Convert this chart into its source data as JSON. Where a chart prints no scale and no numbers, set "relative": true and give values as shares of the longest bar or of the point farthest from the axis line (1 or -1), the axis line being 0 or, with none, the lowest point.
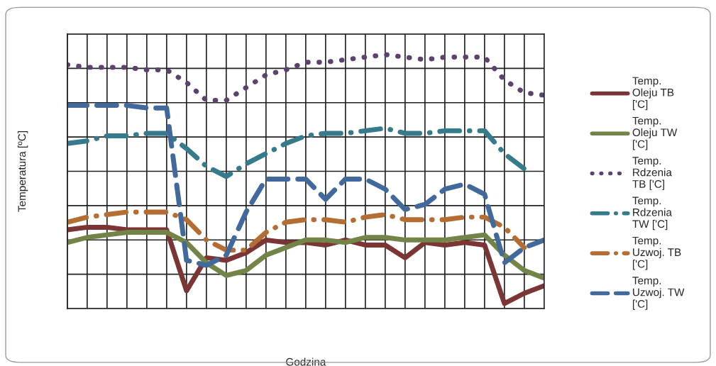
{
  "chart_data": {
    "type": "line",
    "relative": true,
    "xlabel": "Godzina",
    "ylabel": "Temperatura [ºC]",
    "categories": [
      null,
      null,
      null,
      null,
      null,
      null,
      null,
      null,
      null,
      null,
      null,
      null,
      null,
      null,
      null,
      null,
      null,
      null,
      null,
      null,
      null,
      null,
      null,
      null,
      null
    ],
    "series": [
      {
        "name": "Temp.\nOleju TB\n['C]",
        "color": "#7b3535",
        "line_style": "solid",
        "values": [
          0.31,
          0.32,
          0.32,
          0.31,
          0.31,
          0.31,
          0.07,
          0.2,
          0.19,
          0.22,
          0.27,
          0.26,
          0.26,
          0.25,
          0.27,
          0.25,
          0.25,
          0.2,
          0.26,
          0.25,
          0.26,
          0.25,
          0.02,
          0.06,
          0.09
        ]
      },
      {
        "name": "Temp.\nOleju TW\n['C]",
        "color": "#738448",
        "line_style": "solid",
        "values": [
          0.26,
          0.28,
          0.29,
          0.3,
          0.3,
          0.3,
          0.26,
          0.18,
          0.13,
          0.15,
          0.21,
          0.24,
          0.27,
          0.27,
          0.26,
          0.28,
          0.28,
          0.27,
          0.27,
          0.27,
          0.28,
          0.29,
          0.21,
          0.15,
          0.12
        ]
      },
      {
        "name": "Temp.\nRdzenia\nTB ['C]",
        "color": "#5b436e",
        "line_style": "dotted",
        "values": [
          0.96,
          0.95,
          0.95,
          0.95,
          0.94,
          0.94,
          0.89,
          0.82,
          0.82,
          0.87,
          0.92,
          0.94,
          0.97,
          0.97,
          0.98,
          0.99,
          1.0,
          0.99,
          0.98,
          0.99,
          0.99,
          0.99,
          0.9,
          0.85,
          0.84
        ]
      },
      {
        "name": "Temp.\nRdzenia\nTW ['C]",
        "color": "#367b8c",
        "line_style": "dashdot",
        "values": [
          0.65,
          0.66,
          0.68,
          0.68,
          0.69,
          0.69,
          0.63,
          0.56,
          0.52,
          0.57,
          0.61,
          0.65,
          0.68,
          0.69,
          0.69,
          0.7,
          0.71,
          0.69,
          0.69,
          0.7,
          0.7,
          0.7,
          0.61,
          0.55,
          null
        ]
      },
      {
        "name": "Temp.\nUzwoj. TB\n['C]",
        "color": "#b46e34",
        "line_style": "dashdot",
        "values": [
          0.34,
          0.36,
          0.37,
          0.38,
          0.38,
          0.38,
          0.35,
          0.27,
          0.23,
          0.23,
          0.3,
          0.34,
          0.35,
          0.35,
          0.34,
          0.36,
          0.37,
          0.35,
          0.35,
          0.35,
          0.36,
          0.36,
          0.32,
          0.24,
          null
        ]
      },
      {
        "name": "Temp.\nUzwoj. TW\n['C]",
        "color": "#42699c",
        "line_style": "dashed",
        "values": [
          0.8,
          0.8,
          0.8,
          0.8,
          0.79,
          0.79,
          0.19,
          0.17,
          0.21,
          0.38,
          0.51,
          0.51,
          0.51,
          0.43,
          0.51,
          0.51,
          0.47,
          0.39,
          0.41,
          0.47,
          0.49,
          0.45,
          0.18,
          0.24,
          0.27
        ]
      }
    ],
    "grid": true,
    "legend": "right",
    "tick_labels": false
  }
}
